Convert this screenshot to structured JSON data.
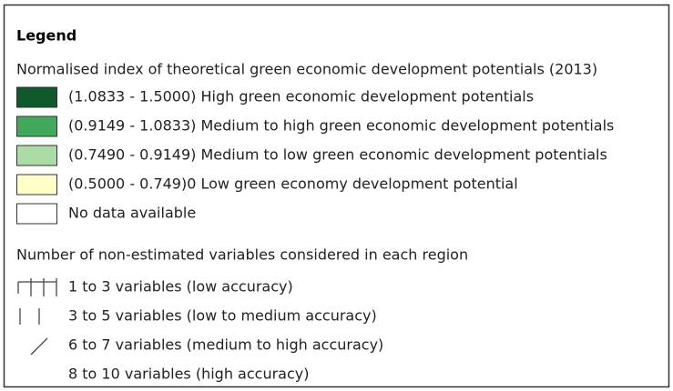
{
  "legend": {
    "title": "Legend",
    "sections": [
      {
        "title": "Normalised index of theoretical green economic development potentials (2013)",
        "items": [
          {
            "label": "(1.0833 - 1.5000) High green economic development potentials",
            "color": "#0e5a2b"
          },
          {
            "label": "(0.9149 - 1.0833) Medium to high green economic development potentials",
            "color": "#41a85c"
          },
          {
            "label": "(0.7490 - 0.9149) Medium to low green economic development potentials",
            "color": "#abdca6"
          },
          {
            "label": "(0.5000 - 0.749)0 Low green economy development potential",
            "color": "#ffffc8"
          },
          {
            "label": "No data available",
            "color": "#ffffff"
          }
        ]
      },
      {
        "title": "Number of non-estimated variables considered in each region",
        "items": [
          {
            "label": "1 to 3 variables (low accuracy)"
          },
          {
            "label": "3 to 5 variables (low to medium accuracy)"
          },
          {
            "label": "6 to 7 variables (medium to high accuracy)"
          },
          {
            "label": "8 to 10 variables (high accuracy)"
          }
        ]
      }
    ]
  }
}
